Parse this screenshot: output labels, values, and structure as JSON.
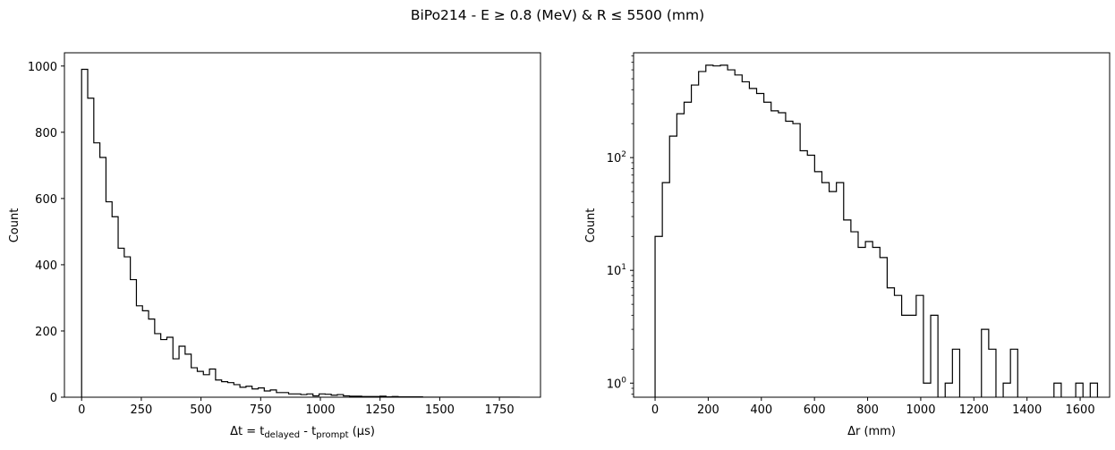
{
  "title": "BiPo214 - E ≥ 0.8 (MeV) & R ≤ 5500 (mm)",
  "chart_data": [
    {
      "type": "histogram",
      "scale": "linear",
      "ylabel": "Count",
      "xlabel": {
        "base": "Δt = t",
        "sub1": "delayed",
        "mid": " - t",
        "sub2": "prompt",
        "end": " (μs)"
      },
      "xlim": [
        -72,
        1922
      ],
      "ylim": [
        0,
        1040
      ],
      "xticks": [
        0,
        250,
        500,
        750,
        1000,
        1250,
        1500,
        1750
      ],
      "yticks": [
        0,
        200,
        400,
        600,
        800,
        1000
      ],
      "bin_width": 25.5,
      "bin_start": 0,
      "counts": [
        990,
        903,
        768,
        724,
        590,
        545,
        450,
        424,
        355,
        276,
        261,
        236,
        192,
        174,
        181,
        116,
        154,
        130,
        89,
        78,
        68,
        85,
        52,
        47,
        44,
        38,
        30,
        33,
        25,
        28,
        19,
        22,
        14,
        14,
        10,
        10,
        8,
        10,
        4,
        10,
        9,
        6,
        8,
        4,
        3,
        3,
        2,
        2,
        2,
        3,
        1,
        2,
        1,
        1,
        1,
        1,
        0,
        0,
        0,
        0,
        0,
        0,
        0,
        0,
        0,
        0,
        0,
        0,
        0,
        0,
        0,
        0
      ]
    },
    {
      "type": "histogram",
      "scale": "log",
      "ylabel": "Count",
      "xlabel": "Δr (mm)",
      "xlim": [
        -81,
        1711
      ],
      "ylim": [
        0.75,
        850
      ],
      "xticks": [
        0,
        200,
        400,
        600,
        800,
        1000,
        1200,
        1400,
        1600
      ],
      "yticks": [
        {
          "value": 1,
          "base": "10",
          "exp": "0"
        },
        {
          "value": 10,
          "base": "10",
          "exp": "1"
        },
        {
          "value": 100,
          "base": "10",
          "exp": "2"
        }
      ],
      "bin_width": 27.3,
      "bin_start": 0,
      "counts": [
        20,
        60,
        155,
        245,
        310,
        440,
        580,
        660,
        650,
        660,
        600,
        540,
        470,
        410,
        370,
        310,
        260,
        250,
        210,
        200,
        115,
        105,
        75,
        60,
        50,
        60,
        28,
        22,
        16,
        18,
        16,
        13,
        7,
        6,
        4,
        4,
        6,
        1,
        4,
        0,
        1,
        2,
        0,
        0,
        0,
        3,
        2,
        0,
        1,
        2,
        0,
        0,
        0,
        0,
        0,
        1,
        0,
        0,
        1,
        0,
        1,
        0
      ]
    }
  ]
}
